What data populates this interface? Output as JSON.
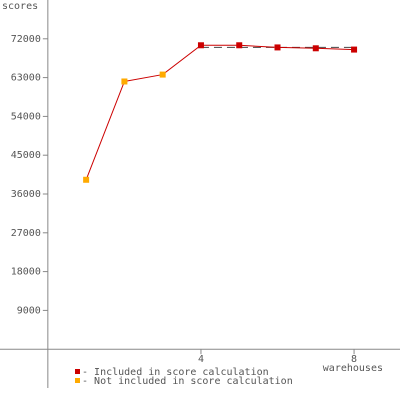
{
  "chart_data": {
    "type": "line",
    "y_label": "scores",
    "x_label": "warehouses",
    "x": [
      1,
      2,
      3,
      4,
      5,
      6,
      7,
      8
    ],
    "values": [
      39300,
      62100,
      63700,
      70500,
      70500,
      70000,
      69800,
      69500
    ],
    "line_color": "#cc0000",
    "point_groups": [
      1,
      1,
      1,
      0,
      0,
      0,
      0,
      0
    ],
    "legend": [
      {
        "name": "Included in score calculation",
        "marker": "- ",
        "color": "#cc0000"
      },
      {
        "name": "Not included in score calculation",
        "marker": "- ",
        "color": "#ffaa00"
      }
    ],
    "reference_line": {
      "value": 70000,
      "x": [
        4,
        8
      ]
    },
    "xlim": [
      -1.25,
      9.2
    ],
    "ylim": [
      -9000,
      81000
    ],
    "xticks": [
      4,
      8
    ],
    "yticks": [
      9000,
      18000,
      27000,
      36000,
      45000,
      54000,
      63000,
      72000
    ]
  }
}
